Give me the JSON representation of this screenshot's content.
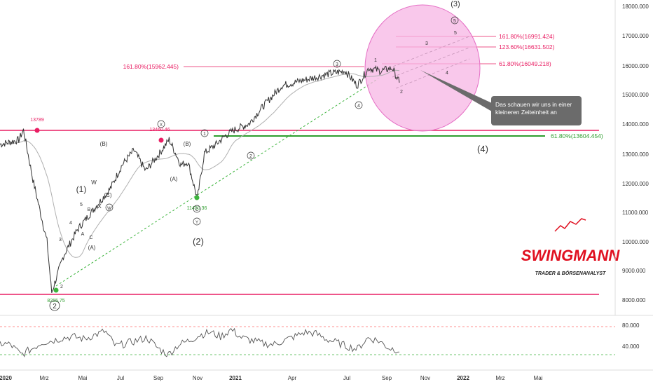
{
  "chart_data": [
    {
      "type": "line",
      "title": "",
      "series": [
        {
          "values_approx": [
            [
              2020.0,
              13300
            ],
            [
              2020.08,
              13450
            ],
            [
              2020.1,
              13789
            ],
            [
              2020.14,
              12100
            ],
            [
              2020.2,
              10000
            ],
            [
              2020.22,
              8255.75
            ],
            [
              2020.27,
              9500
            ],
            [
              2020.33,
              10400
            ],
            [
              2020.37,
              10800
            ],
            [
              2020.41,
              11200
            ],
            [
              2020.47,
              11800
            ],
            [
              2020.52,
              12600
            ],
            [
              2020.57,
              13100
            ],
            [
              2020.62,
              12400
            ],
            [
              2020.68,
              13000
            ],
            [
              2020.72,
              13460
            ],
            [
              2020.77,
              12600
            ],
            [
              2020.8,
              12700
            ],
            [
              2020.84,
              11450
            ],
            [
              2020.87,
              13000
            ],
            [
              2020.92,
              13300
            ],
            [
              2020.96,
              13600
            ],
            [
              2021.0,
              13800
            ],
            [
              2021.06,
              14000
            ],
            [
              2021.12,
              14600
            ],
            [
              2021.2,
              15300
            ],
            [
              2021.3,
              15500
            ],
            [
              2021.4,
              15700
            ],
            [
              2021.47,
              15800
            ],
            [
              2021.52,
              15300
            ],
            [
              2021.57,
              15900
            ],
            [
              2021.62,
              15800
            ],
            [
              2021.67,
              15900
            ],
            [
              2021.7,
              15400
            ]
          ]
        }
      ],
      "yaxis_ticks": [
        "18000.000",
        "17000.000",
        "16000.000",
        "15000.000",
        "14000.000",
        "13000.000",
        "12000.000",
        "11000.000",
        "10000.000",
        "9000.000",
        "8000.000"
      ],
      "xaxis_ticks": [
        "2020",
        "Mrz",
        "Mai",
        "Jul",
        "Sep",
        "Nov",
        "2021",
        "Apr",
        "Jul",
        "Sep",
        "Nov",
        "2022",
        "Mrz",
        "Mai"
      ],
      "horizontal_lines": [
        {
          "label": "161.80%(15962.445)",
          "value": 15962.445,
          "color": "#e91e63"
        },
        {
          "label": "161.80%(16991.424)",
          "value": 16991.424,
          "color": "#e91e63"
        },
        {
          "label": "123.60%(16631.502)",
          "value": 16631.502,
          "color": "#e91e63"
        },
        {
          "label": "61.80%(16049.218)",
          "value": 16049.218,
          "color": "#e91e63"
        },
        {
          "label": "61.80%(13604.454)",
          "value": 13604.454,
          "color": "#2e9e2e"
        }
      ],
      "levels": [
        13789,
        8255.75
      ],
      "price_labels": [
        "13789",
        "13460.46",
        "11450.36",
        "8255.75"
      ],
      "wave_labels": [
        "(3)",
        "(1)",
        "(2)",
        "(4)",
        "(A)",
        "(B)",
        "(C)",
        "W",
        "X",
        "A",
        "B",
        "C",
        "2",
        "3",
        "4",
        "5",
        "1"
      ],
      "circled_labels": [
        "2",
        "1",
        "2",
        "3",
        "4",
        "3",
        "4",
        "5",
        "W",
        "Y",
        "C",
        "X"
      ],
      "annotation": "Das schauen wir uns in einer kleineren Zeiteinheit an",
      "highlight_color": "#f7b5e4"
    },
    {
      "type": "line",
      "title": "",
      "series": [
        {
          "values_approx": [
            50,
            48,
            30,
            40,
            52,
            55,
            60,
            62,
            58,
            65,
            72,
            45,
            50,
            55,
            60,
            42,
            30,
            48,
            55,
            65,
            70,
            62,
            75,
            60,
            55,
            50,
            48,
            55,
            62,
            70,
            68,
            58,
            52,
            45,
            40,
            60,
            55,
            42,
            38
          ]
        }
      ],
      "yaxis_ticks": [
        "80.000",
        "40.000"
      ],
      "reference_levels": [
        80,
        30
      ],
      "colors": {
        "line": "#555555",
        "overbought": "#ff6b6b",
        "oversold": "#3cb43c"
      }
    }
  ],
  "logo": {
    "name": "SWINGMANN",
    "subtitle": "TRADER & BÖRSENANALYST"
  },
  "colors": {
    "pink_line": "#e91e63",
    "green_line": "#2e9e2e",
    "callout_bg": "#6b6b6b",
    "callout_text": "#ffffff",
    "logo_red": "#e01020"
  }
}
